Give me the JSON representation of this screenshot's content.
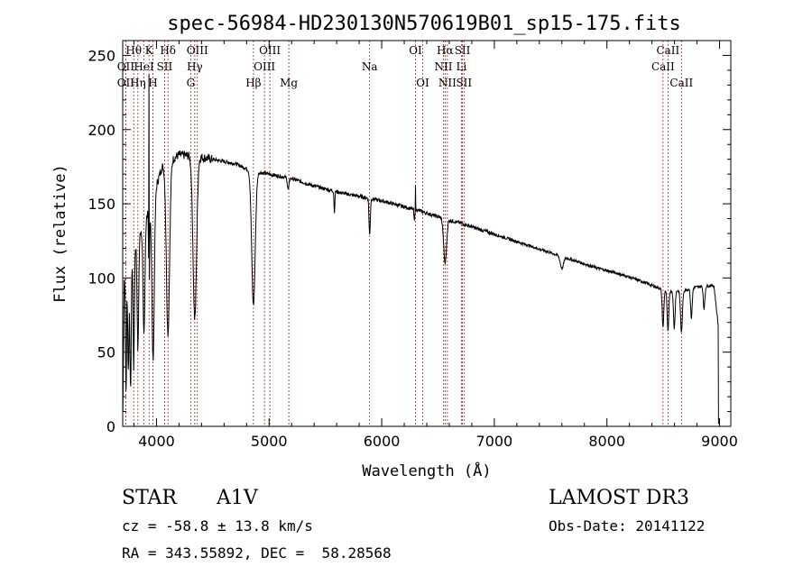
{
  "chart_data": {
    "type": "line",
    "title": "spec-56984-HD230130N570619B01_sp15-175.fits",
    "xlabel": "Wavelength (Å)",
    "ylabel": "Flux (relative)",
    "xlim": [
      3700,
      9100
    ],
    "ylim": [
      0,
      260
    ],
    "xticks": [
      4000,
      5000,
      6000,
      7000,
      8000,
      9000
    ],
    "yticks": [
      0,
      50,
      100,
      150,
      200,
      250
    ],
    "continuum": {
      "x": [
        3700,
        3800,
        3950,
        4050,
        4200,
        4350,
        4500,
        4700,
        4850,
        5000,
        5200,
        5400,
        5600,
        5800,
        6000,
        6200,
        6350,
        6550,
        6700,
        6900,
        7100,
        7300,
        7500,
        7700,
        7900,
        8100,
        8300,
        8500,
        8600,
        8700,
        8800,
        8950,
        9000
      ],
      "y": [
        95,
        120,
        150,
        175,
        183,
        182,
        180,
        177,
        172,
        170,
        167,
        162,
        158,
        155,
        152,
        148,
        145,
        140,
        137,
        132,
        127,
        122,
        117,
        112,
        107,
        103,
        98,
        92,
        91,
        92,
        94,
        95,
        60
      ]
    },
    "absorption_lines": [
      {
        "x": 3730,
        "depth": 80,
        "width": 6
      },
      {
        "x": 3750,
        "depth": 70,
        "width": 8
      },
      {
        "x": 3770,
        "depth": 90,
        "width": 8
      },
      {
        "x": 3798,
        "depth": 80,
        "width": 8
      },
      {
        "x": 3835,
        "depth": 75,
        "width": 10
      },
      {
        "x": 3889,
        "depth": 75,
        "width": 12
      },
      {
        "x": 3934,
        "depth": 55,
        "width": 6
      },
      {
        "x": 3970,
        "depth": 110,
        "width": 15
      },
      {
        "x": 4102,
        "depth": 115,
        "width": 20
      },
      {
        "x": 4340,
        "depth": 110,
        "width": 22
      },
      {
        "x": 4861,
        "depth": 90,
        "width": 22
      },
      {
        "x": 5170,
        "depth": 8,
        "width": 10
      },
      {
        "x": 5580,
        "depth": 15,
        "width": 5
      },
      {
        "x": 5893,
        "depth": 25,
        "width": 8
      },
      {
        "x": 6290,
        "depth": 8,
        "width": 5
      },
      {
        "x": 6563,
        "depth": 30,
        "width": 18
      },
      {
        "x": 7600,
        "depth": 8,
        "width": 20
      },
      {
        "x": 8498,
        "depth": 25,
        "width": 10
      },
      {
        "x": 8542,
        "depth": 28,
        "width": 10
      },
      {
        "x": 8598,
        "depth": 25,
        "width": 10
      },
      {
        "x": 8662,
        "depth": 28,
        "width": 12
      },
      {
        "x": 8750,
        "depth": 20,
        "width": 10
      },
      {
        "x": 8863,
        "depth": 15,
        "width": 10
      }
    ],
    "emission_features": [
      {
        "x": 3933,
        "peak": 235
      },
      {
        "x": 6300,
        "peak": 164
      }
    ],
    "lines": [
      {
        "label": "OII",
        "x": 3727,
        "row": 2
      },
      {
        "label": "OII",
        "x": 3727,
        "row": 3
      },
      {
        "label": "Hθ",
        "x": 3798,
        "row": 1
      },
      {
        "label": "Hη",
        "x": 3835,
        "row": 3
      },
      {
        "label": "HeI",
        "x": 3889,
        "row": 2
      },
      {
        "label": "K",
        "x": 3934,
        "row": 1
      },
      {
        "label": "H",
        "x": 3968,
        "row": 3
      },
      {
        "label": "SII",
        "x": 4072,
        "row": 2
      },
      {
        "label": "Hδ",
        "x": 4102,
        "row": 1
      },
      {
        "label": "OIII",
        "x": 4363,
        "row": 1
      },
      {
        "label": "Hγ",
        "x": 4340,
        "row": 2
      },
      {
        "label": "G",
        "x": 4304,
        "row": 3
      },
      {
        "label": "Hβ",
        "x": 4861,
        "row": 3
      },
      {
        "label": "OIII",
        "x": 5007,
        "row": 1
      },
      {
        "label": "OIII",
        "x": 4959,
        "row": 2
      },
      {
        "label": "Mg",
        "x": 5175,
        "row": 3
      },
      {
        "label": "Na",
        "x": 5893,
        "row": 2
      },
      {
        "label": "OI",
        "x": 6300,
        "row": 1
      },
      {
        "label": "OI",
        "x": 6364,
        "row": 3
      },
      {
        "label": "Hα",
        "x": 6563,
        "row": 1
      },
      {
        "label": "NII",
        "x": 6548,
        "row": 2
      },
      {
        "label": "NII",
        "x": 6583,
        "row": 3
      },
      {
        "label": "SII",
        "x": 6717,
        "row": 1
      },
      {
        "label": "Li",
        "x": 6708,
        "row": 2
      },
      {
        "label": "SII",
        "x": 6731,
        "row": 3
      },
      {
        "label": "CaII",
        "x": 8542,
        "row": 1
      },
      {
        "label": "CaII",
        "x": 8498,
        "row": 2
      },
      {
        "label": "CaII",
        "x": 8662,
        "row": 3
      }
    ]
  },
  "info": {
    "object_type": "STAR",
    "subclass": "A1V",
    "survey": "LAMOST DR3",
    "cz": "cz = -58.8 ± 13.8 km/s",
    "obs_date": "Obs-Date: 20141122",
    "coords": "RA = 343.55892, DEC =  58.28568"
  }
}
